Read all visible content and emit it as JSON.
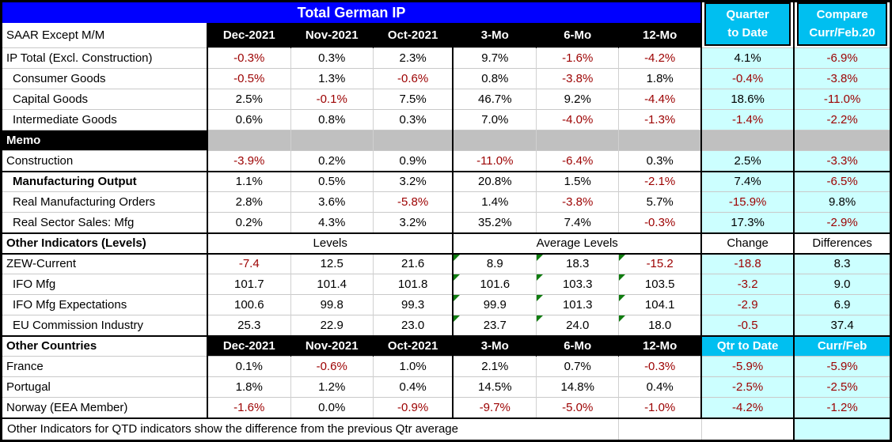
{
  "title": "Total German IP",
  "colors": {
    "banner_blue": "#0000FF",
    "side_header_cyan": "#00BFF0",
    "highlight_cell_cyan": "#CCFFFF",
    "memo_band_gray": "#C0C0C0",
    "negative_red": "#9C0000",
    "band_black": "#000000",
    "marker_green": "#107C10"
  },
  "header": {
    "corner_label": "SAAR Except M/M",
    "months": [
      "Dec-2021",
      "Nov-2021",
      "Oct-2021"
    ],
    "periods": [
      "3-Mo",
      "6-Mo",
      "12-Mo"
    ],
    "qtd_line1": "Quarter",
    "qtd_line2": "to Date",
    "compare_line1": "Compare",
    "compare_line2": "Curr/Feb.20"
  },
  "rows": [
    {
      "type": "data",
      "label": "IP Total (Excl. Construction)",
      "indent": false,
      "bold": false,
      "triangles": false,
      "thick_top": false,
      "values": [
        "-0.3%",
        "0.3%",
        "2.3%",
        "9.7%",
        "-1.6%",
        "-4.2%"
      ],
      "qtd": "4.1%",
      "compare": "-6.9%"
    },
    {
      "type": "data",
      "label": "Consumer Goods",
      "indent": true,
      "bold": false,
      "triangles": false,
      "thick_top": false,
      "values": [
        "-0.5%",
        "1.3%",
        "-0.6%",
        "0.8%",
        "-3.8%",
        "1.8%"
      ],
      "qtd": "-0.4%",
      "compare": "-3.8%"
    },
    {
      "type": "data",
      "label": "Capital Goods",
      "indent": true,
      "bold": false,
      "triangles": false,
      "thick_top": false,
      "values": [
        "2.5%",
        "-0.1%",
        "7.5%",
        "46.7%",
        "9.2%",
        "-4.4%"
      ],
      "qtd": "18.6%",
      "compare": "-11.0%"
    },
    {
      "type": "data",
      "label": "Intermediate Goods",
      "indent": true,
      "bold": false,
      "triangles": false,
      "thick_top": false,
      "values": [
        "0.6%",
        "0.8%",
        "0.3%",
        "7.0%",
        "-4.0%",
        "-1.3%"
      ],
      "qtd": "-1.4%",
      "compare": "-2.2%"
    },
    {
      "type": "memo",
      "label": "Memo"
    },
    {
      "type": "data",
      "label": "Construction",
      "indent": false,
      "bold": false,
      "triangles": false,
      "thick_top": false,
      "values": [
        "-3.9%",
        "0.2%",
        "0.9%",
        "-11.0%",
        "-6.4%",
        "0.3%"
      ],
      "qtd": "2.5%",
      "compare": "-3.3%"
    },
    {
      "type": "data",
      "label": "Manufacturing Output",
      "indent": true,
      "bold": true,
      "triangles": false,
      "thick_top": true,
      "values": [
        "1.1%",
        "0.5%",
        "3.2%",
        "20.8%",
        "1.5%",
        "-2.1%"
      ],
      "qtd": "7.4%",
      "compare": "-6.5%"
    },
    {
      "type": "data",
      "label": "Real Manufacturing Orders",
      "indent": true,
      "bold": false,
      "triangles": false,
      "thick_top": false,
      "values": [
        "2.8%",
        "3.6%",
        "-5.8%",
        "1.4%",
        "-3.8%",
        "5.7%"
      ],
      "qtd": "-15.9%",
      "compare": "9.8%"
    },
    {
      "type": "data",
      "label": "Real Sector Sales: Mfg",
      "indent": true,
      "bold": false,
      "triangles": false,
      "thick_top": false,
      "values": [
        "0.2%",
        "4.3%",
        "3.2%",
        "35.2%",
        "7.4%",
        "-0.3%"
      ],
      "qtd": "17.3%",
      "compare": "-2.9%"
    },
    {
      "type": "subheader",
      "label": "Other Indicators (Levels)",
      "months_span": "Levels",
      "periods_span": "Average Levels",
      "qtd": "Change",
      "compare": "Differences"
    },
    {
      "type": "data",
      "label": "ZEW-Current",
      "indent": false,
      "bold": false,
      "triangles": true,
      "thick_top": false,
      "values": [
        "-7.4",
        "12.5",
        "21.6",
        "8.9",
        "18.3",
        "-15.2"
      ],
      "qtd": "-18.8",
      "compare": "8.3"
    },
    {
      "type": "data",
      "label": "IFO Mfg",
      "indent": true,
      "bold": false,
      "triangles": true,
      "thick_top": false,
      "values": [
        "101.7",
        "101.4",
        "101.8",
        "101.6",
        "103.3",
        "103.5"
      ],
      "qtd": "-3.2",
      "compare": "9.0"
    },
    {
      "type": "data",
      "label": "IFO Mfg Expectations",
      "indent": true,
      "bold": false,
      "triangles": true,
      "thick_top": false,
      "values": [
        "100.6",
        "99.8",
        "99.3",
        "99.9",
        "101.3",
        "104.1"
      ],
      "qtd": "-2.9",
      "compare": "6.9"
    },
    {
      "type": "data",
      "label": "EU Commission Industry",
      "indent": true,
      "bold": false,
      "triangles": true,
      "thick_top": false,
      "values": [
        "25.3",
        "22.9",
        "23.0",
        "23.7",
        "24.0",
        "18.0"
      ],
      "qtd": "-0.5",
      "compare": "37.4"
    },
    {
      "type": "colheader",
      "label": "Other Countries",
      "months": [
        "Dec-2021",
        "Nov-2021",
        "Oct-2021"
      ],
      "periods": [
        "3-Mo",
        "6-Mo",
        "12-Mo"
      ],
      "qtd": "Qtr to Date",
      "compare": "Curr/Feb"
    },
    {
      "type": "data",
      "label": "France",
      "indent": false,
      "bold": false,
      "triangles": false,
      "thick_top": false,
      "values": [
        "0.1%",
        "-0.6%",
        "1.0%",
        "2.1%",
        "0.7%",
        "-0.3%"
      ],
      "qtd": "-5.9%",
      "compare": "-5.9%"
    },
    {
      "type": "data",
      "label": "Portugal",
      "indent": false,
      "bold": false,
      "triangles": false,
      "thick_top": false,
      "values": [
        "1.8%",
        "1.2%",
        "0.4%",
        "14.5%",
        "14.8%",
        "0.4%"
      ],
      "qtd": "-2.5%",
      "compare": "-2.5%"
    },
    {
      "type": "data",
      "label": "Norway (EEA Member)",
      "indent": false,
      "bold": false,
      "triangles": false,
      "thick_top": false,
      "values": [
        "-1.6%",
        "0.0%",
        "-0.9%",
        "-9.7%",
        "-5.0%",
        "-1.0%"
      ],
      "qtd": "-4.2%",
      "compare": "-1.2%"
    }
  ],
  "footer": {
    "note": "Other Indicators for QTD indicators show the difference from the previous Qtr average"
  }
}
